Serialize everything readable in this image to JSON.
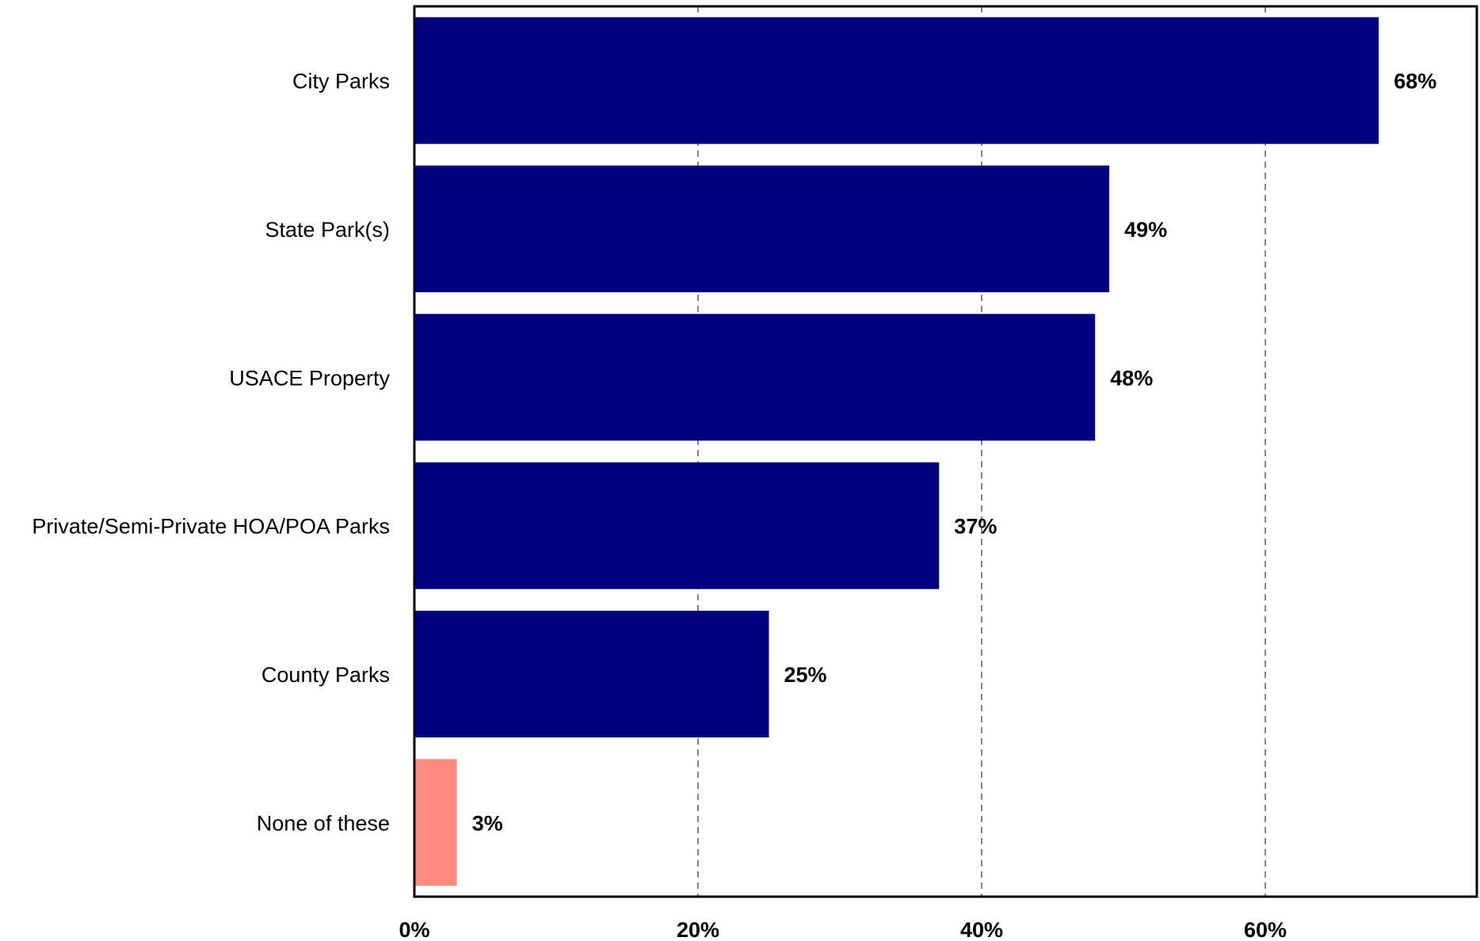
{
  "chart_data": {
    "type": "bar",
    "orientation": "horizontal",
    "categories": [
      "City Parks",
      "State Park(s)",
      "USACE Property",
      "Private/Semi-Private HOA/POA Parks",
      "County Parks",
      "None of these"
    ],
    "values": [
      68,
      49,
      48,
      37,
      25,
      3
    ],
    "value_labels": [
      "68%",
      "49%",
      "48%",
      "37%",
      "25%",
      "3%"
    ],
    "bar_colors": [
      "#000080",
      "#000080",
      "#000080",
      "#000080",
      "#000080",
      "#FF8A80"
    ],
    "x_ticks": [
      0,
      20,
      40,
      60
    ],
    "x_tick_labels": [
      "0%",
      "20%",
      "40%",
      "60%"
    ],
    "xlim": [
      0,
      75
    ],
    "grid": "vertical dashed",
    "title": "",
    "xlabel": "",
    "ylabel": ""
  }
}
